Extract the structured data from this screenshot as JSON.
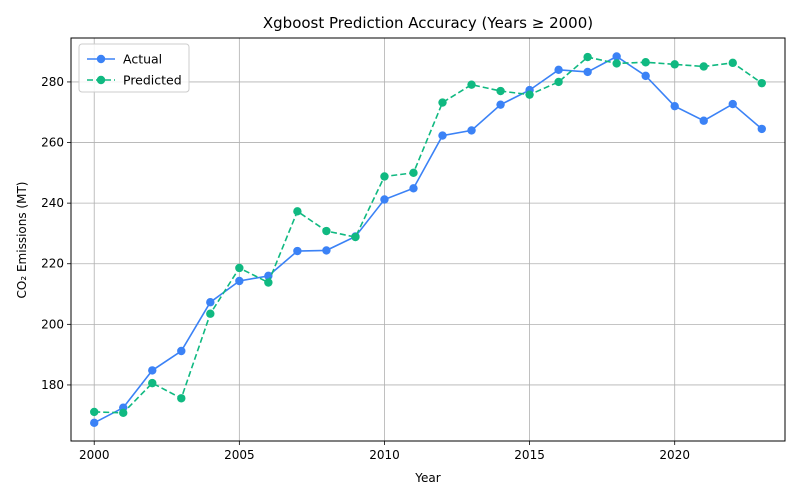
{
  "chart_data": {
    "type": "line",
    "title": "Xgboost Prediction Accuracy (Years ≥ 2000)",
    "xlabel": "Year",
    "ylabel": "CO₂ Emissions (MT)",
    "xlim": [
      1999.2,
      2023.8
    ],
    "ylim": [
      161.5,
      294.5
    ],
    "xticks": [
      2000,
      2005,
      2010,
      2015,
      2020
    ],
    "yticks": [
      180,
      200,
      220,
      240,
      260,
      280
    ],
    "grid": true,
    "legend_position": "top-left",
    "x": [
      2000,
      2001,
      2002,
      2003,
      2004,
      2005,
      2006,
      2007,
      2008,
      2009,
      2010,
      2011,
      2012,
      2013,
      2014,
      2015,
      2016,
      2017,
      2018,
      2019,
      2020,
      2021,
      2022,
      2023
    ],
    "series": [
      {
        "name": "Actual",
        "color": "#3b82f6",
        "style": "solid",
        "values": [
          167.5,
          172.5,
          184.8,
          191.2,
          207.3,
          214.3,
          216.0,
          224.2,
          224.4,
          229.0,
          241.2,
          244.9,
          262.3,
          264.0,
          272.5,
          277.3,
          284.0,
          283.3,
          288.4,
          282.0,
          272.0,
          267.2,
          272.7,
          264.5
        ]
      },
      {
        "name": "Predicted",
        "color": "#10b981",
        "style": "dashed",
        "values": [
          171.1,
          170.8,
          180.6,
          175.6,
          203.5,
          218.6,
          213.8,
          237.3,
          230.8,
          228.8,
          248.8,
          250.0,
          273.2,
          279.1,
          277.0,
          275.8,
          280.0,
          288.2,
          286.1,
          286.5,
          285.8,
          285.1,
          286.3,
          279.6
        ]
      }
    ]
  }
}
